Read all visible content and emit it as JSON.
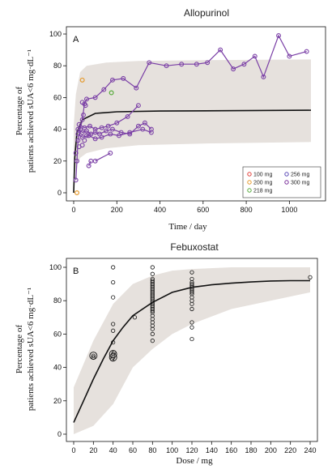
{
  "chart_data": [
    {
      "type": "scatter",
      "panel": "A",
      "title": "Allopurinol",
      "xlabel": "Time / day",
      "ylabel_line1": "Percentage of",
      "ylabel_line2": "patients achieved sUA<6 mg·dL⁻¹",
      "xlim": [
        0,
        1100
      ],
      "ylim": [
        0,
        100
      ],
      "xticks": [
        "0",
        "200",
        "400",
        "600",
        "800",
        "1000"
      ],
      "yticks": [
        "0",
        "20",
        "40",
        "60",
        "80",
        "100"
      ],
      "legend_position": "bottom-right",
      "legend": [
        {
          "label": "100 mg",
          "color": "#e2403a"
        },
        {
          "label": "200 mg",
          "color": "#e59a2c"
        },
        {
          "label": "218 mg",
          "color": "#58ab3c"
        },
        {
          "label": "256 mg",
          "color": "#5a49b6"
        },
        {
          "label": "300 mg",
          "color": "#7a2f9a"
        }
      ],
      "band_upper": [
        [
          0,
          42
        ],
        [
          10,
          62
        ],
        [
          30,
          76
        ],
        [
          60,
          80
        ],
        [
          150,
          82
        ],
        [
          300,
          83
        ],
        [
          600,
          83.5
        ],
        [
          1100,
          84
        ]
      ],
      "band_lower": [
        [
          0,
          8
        ],
        [
          10,
          16
        ],
        [
          30,
          22
        ],
        [
          60,
          25
        ],
        [
          150,
          28
        ],
        [
          300,
          30
        ],
        [
          600,
          31
        ],
        [
          1100,
          32
        ]
      ],
      "median": [
        [
          0,
          0
        ],
        [
          5,
          22
        ],
        [
          15,
          38
        ],
        [
          40,
          46
        ],
        [
          100,
          50
        ],
        [
          200,
          51
        ],
        [
          400,
          51.5
        ],
        [
          1100,
          52
        ]
      ],
      "main_series": [
        [
          10,
          8
        ],
        [
          15,
          20
        ],
        [
          20,
          33
        ],
        [
          30,
          40
        ],
        [
          40,
          46
        ],
        [
          50,
          56
        ],
        [
          60,
          59
        ],
        [
          100,
          60
        ],
        [
          140,
          65
        ],
        [
          180,
          71
        ],
        [
          230,
          72
        ],
        [
          290,
          66
        ],
        [
          350,
          82
        ],
        [
          430,
          80
        ],
        [
          500,
          81
        ],
        [
          570,
          81
        ],
        [
          620,
          82
        ],
        [
          680,
          90
        ],
        [
          740,
          78
        ],
        [
          790,
          81
        ],
        [
          840,
          86
        ],
        [
          880,
          73
        ],
        [
          950,
          99
        ],
        [
          1000,
          86
        ],
        [
          1080,
          89
        ]
      ],
      "cluster_series": [
        [
          20,
          40
        ],
        [
          40,
          38
        ],
        [
          60,
          39
        ],
        [
          80,
          37
        ],
        [
          100,
          38
        ],
        [
          120,
          37
        ],
        [
          150,
          39
        ],
        [
          180,
          40
        ],
        [
          220,
          38
        ],
        [
          260,
          37
        ],
        [
          300,
          42
        ],
        [
          330,
          44
        ],
        [
          360,
          40
        ]
      ],
      "cluster_series_2": [
        [
          25,
          43
        ],
        [
          50,
          41
        ],
        [
          75,
          42
        ],
        [
          100,
          40
        ],
        [
          130,
          41
        ],
        [
          160,
          42
        ],
        [
          200,
          44
        ],
        [
          250,
          48
        ],
        [
          300,
          55
        ]
      ],
      "cluster_series_3": [
        [
          20,
          37
        ],
        [
          40,
          35
        ],
        [
          70,
          36
        ],
        [
          100,
          34
        ],
        [
          130,
          35
        ],
        [
          170,
          37
        ],
        [
          210,
          36
        ],
        [
          260,
          38
        ],
        [
          320,
          40
        ],
        [
          360,
          38
        ]
      ],
      "low_series": [
        [
          70,
          17
        ],
        [
          80,
          20
        ]
      ],
      "low_series_2": [
        [
          100,
          20
        ],
        [
          170,
          25
        ]
      ],
      "early_series": [
        [
          10,
          25
        ],
        [
          25,
          29
        ],
        [
          40,
          30
        ],
        [
          50,
          33
        ],
        [
          60,
          36
        ],
        [
          45,
          49
        ],
        [
          55,
          55
        ],
        [
          40,
          57
        ]
      ],
      "points_orange": [
        [
          40,
          71
        ],
        [
          15,
          0
        ]
      ],
      "points_green": [
        [
          175,
          63
        ]
      ]
    },
    {
      "type": "scatter",
      "panel": "B",
      "title": "Febuxostat",
      "xlabel": "Dose / mg",
      "ylabel_line1": "Percentage of",
      "ylabel_line2": "patients achieved sUA<6 mg·dL⁻¹",
      "xlim": [
        0,
        240
      ],
      "ylim": [
        0,
        100
      ],
      "xticks": [
        "0",
        "20",
        "40",
        "60",
        "80",
        "100",
        "120",
        "140",
        "160",
        "180",
        "200",
        "220",
        "240"
      ],
      "yticks": [
        "0",
        "20",
        "40",
        "60",
        "80",
        "100"
      ],
      "band_upper": [
        [
          0,
          28
        ],
        [
          20,
          56
        ],
        [
          40,
          78
        ],
        [
          60,
          90
        ],
        [
          80,
          95
        ],
        [
          100,
          98
        ],
        [
          120,
          99
        ],
        [
          160,
          100
        ],
        [
          240,
          100
        ]
      ],
      "band_lower": [
        [
          0,
          0
        ],
        [
          20,
          5
        ],
        [
          40,
          18
        ],
        [
          60,
          40
        ],
        [
          80,
          51
        ],
        [
          100,
          60
        ],
        [
          120,
          66
        ],
        [
          160,
          75
        ],
        [
          240,
          85
        ]
      ],
      "median": [
        [
          0,
          7
        ],
        [
          10,
          20
        ],
        [
          20,
          33
        ],
        [
          30,
          45
        ],
        [
          40,
          56
        ],
        [
          50,
          64
        ],
        [
          60,
          71
        ],
        [
          80,
          79
        ],
        [
          100,
          85
        ],
        [
          120,
          88
        ],
        [
          140,
          89.5
        ],
        [
          160,
          90.5
        ],
        [
          180,
          91.2
        ],
        [
          200,
          91.8
        ],
        [
          220,
          92
        ],
        [
          240,
          92
        ]
      ],
      "points": [
        [
          20,
          46
        ],
        [
          20,
          47
        ],
        [
          39,
          45
        ],
        [
          40,
          48
        ],
        [
          41,
          49
        ],
        [
          40,
          46
        ],
        [
          40,
          55
        ],
        [
          40,
          62
        ],
        [
          40,
          66
        ],
        [
          40,
          82
        ],
        [
          40,
          91
        ],
        [
          40,
          100
        ],
        [
          62,
          70
        ],
        [
          80,
          56
        ],
        [
          80,
          60
        ],
        [
          80,
          63
        ],
        [
          80,
          65
        ],
        [
          80,
          67
        ],
        [
          80,
          69
        ],
        [
          80,
          71
        ],
        [
          80,
          73
        ],
        [
          80,
          74
        ],
        [
          80,
          75
        ],
        [
          80,
          76
        ],
        [
          80,
          77
        ],
        [
          80,
          78
        ],
        [
          80,
          79
        ],
        [
          80,
          80
        ],
        [
          80,
          81
        ],
        [
          80,
          82
        ],
        [
          80,
          83
        ],
        [
          80,
          84
        ],
        [
          80,
          85
        ],
        [
          80,
          86
        ],
        [
          80,
          87
        ],
        [
          80,
          88
        ],
        [
          80,
          89
        ],
        [
          80,
          90
        ],
        [
          80,
          91
        ],
        [
          80,
          92
        ],
        [
          80,
          93
        ],
        [
          80,
          96
        ],
        [
          80,
          100
        ],
        [
          120,
          57
        ],
        [
          120,
          64
        ],
        [
          120,
          67
        ],
        [
          120,
          75
        ],
        [
          120,
          78
        ],
        [
          120,
          80
        ],
        [
          120,
          82
        ],
        [
          120,
          84
        ],
        [
          120,
          85
        ],
        [
          120,
          86
        ],
        [
          120,
          87
        ],
        [
          120,
          88
        ],
        [
          120,
          89
        ],
        [
          120,
          90
        ],
        [
          120,
          91
        ],
        [
          120,
          93
        ],
        [
          120,
          97
        ],
        [
          240,
          94
        ]
      ],
      "big_points": [
        [
          40,
          46
        ],
        [
          40,
          48
        ],
        [
          20,
          47
        ]
      ]
    }
  ]
}
